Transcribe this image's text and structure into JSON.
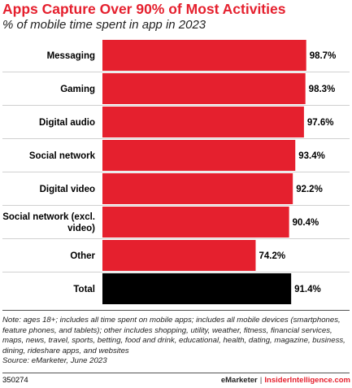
{
  "header": {
    "title": "Apps Capture Over 90% of Most Activities",
    "subtitle": "% of mobile time spent in app in 2023"
  },
  "chart_data": {
    "type": "bar",
    "orientation": "horizontal",
    "categories": [
      "Messaging",
      "Gaming",
      "Digital audio",
      "Social network",
      "Digital video",
      "Social network (excl. video)",
      "Other",
      "Total"
    ],
    "category_lines": [
      [
        "Messaging"
      ],
      [
        "Gaming"
      ],
      [
        "Digital audio"
      ],
      [
        "Social network"
      ],
      [
        "Digital video"
      ],
      [
        "Social network (excl.",
        "video)"
      ],
      [
        "Other"
      ],
      [
        "Total"
      ]
    ],
    "values": [
      98.7,
      98.3,
      97.6,
      93.4,
      92.2,
      90.4,
      74.2,
      91.4
    ],
    "value_labels": [
      "98.7%",
      "98.3%",
      "97.6%",
      "93.4%",
      "92.2%",
      "90.4%",
      "74.2%",
      "91.4%"
    ],
    "xlim": [
      0,
      100
    ],
    "grid": false,
    "colors": {
      "bar": "#e5202e",
      "total_bar": "#000000",
      "row_divider": "#d0d0d0"
    }
  },
  "note": {
    "text": "Note: ages 18+; includes all time spent on mobile apps; includes all mobile devices (smartphones, feature phones, and tablets); other includes shopping, utility, weather, fitness, financial services, maps, news, travel, sports, betting, food and drink, educational, health, dating, magazine, business, dining, rideshare apps, and websites",
    "source": "Source: eMarketer, June 2023"
  },
  "footer": {
    "chart_id": "350274",
    "brand_emarketer": "eMarketer",
    "separator": "|",
    "brand_insider": "InsiderIntelligence.com"
  }
}
